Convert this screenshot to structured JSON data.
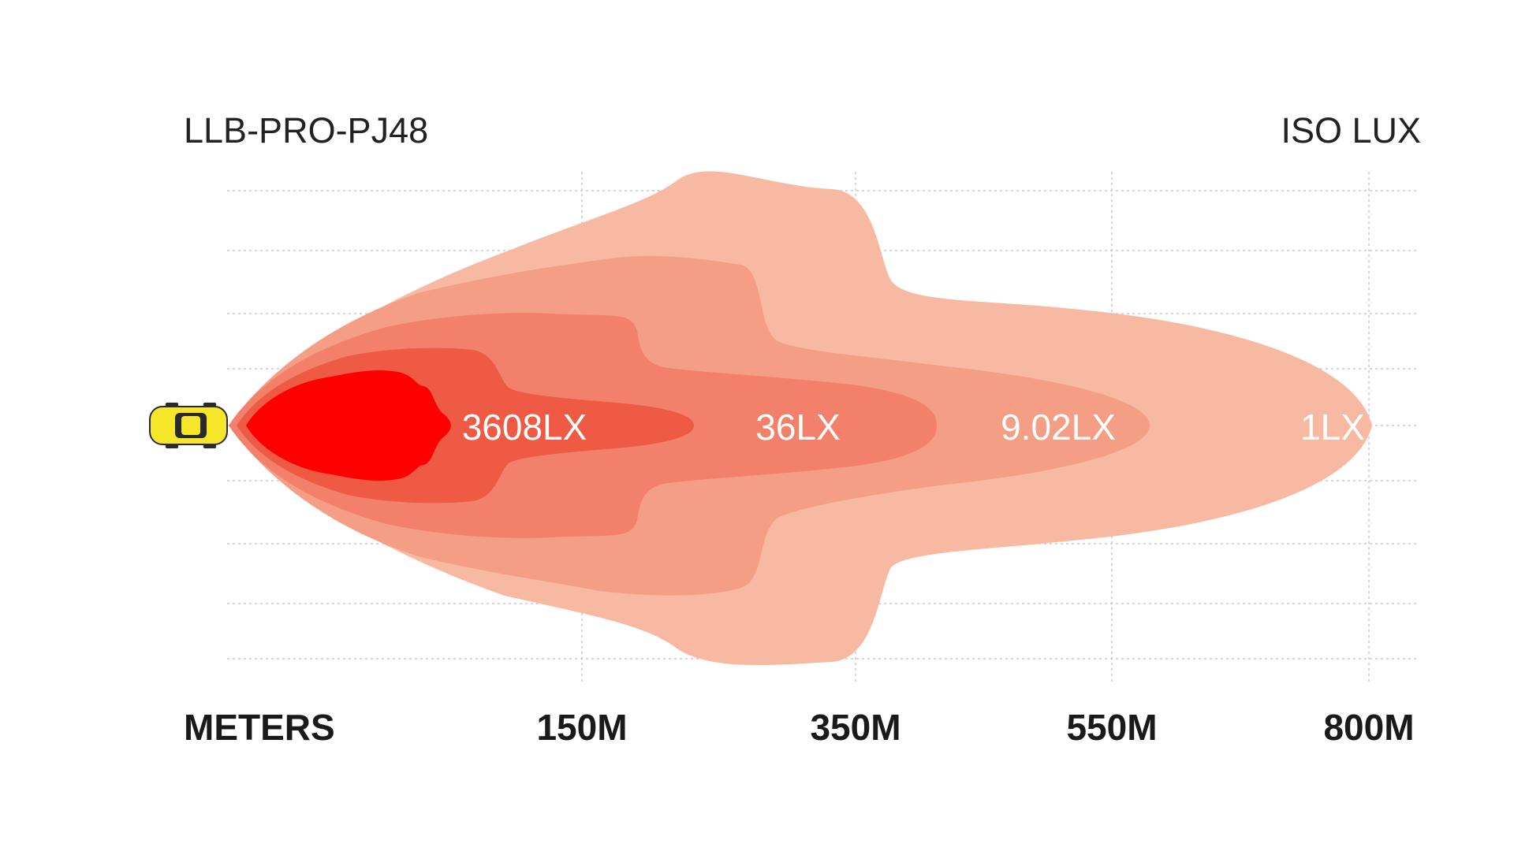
{
  "chart_data": {
    "type": "isolux_beam",
    "product": "LLB-PRO-PJ48",
    "title": "ISO LUX",
    "xlabel": "METERS",
    "x_ticks": [
      150,
      350,
      550,
      800
    ],
    "x_tick_labels": [
      "150M",
      "350M",
      "550M",
      "800M"
    ],
    "xlim": [
      0,
      800
    ],
    "grid": true,
    "zones": [
      {
        "lux": 3608,
        "label": "3608LX",
        "color": "#ef5a45"
      },
      {
        "lux": 36,
        "label": "36LX",
        "color": "#f3806a"
      },
      {
        "lux": 9.02,
        "label": "9.02LX",
        "color": "#f59e86"
      },
      {
        "lux": 1,
        "label": "1LX",
        "color": "#f8b9a3"
      }
    ],
    "core_color": "#ff0000",
    "vehicle_color": "#f5e62a"
  }
}
